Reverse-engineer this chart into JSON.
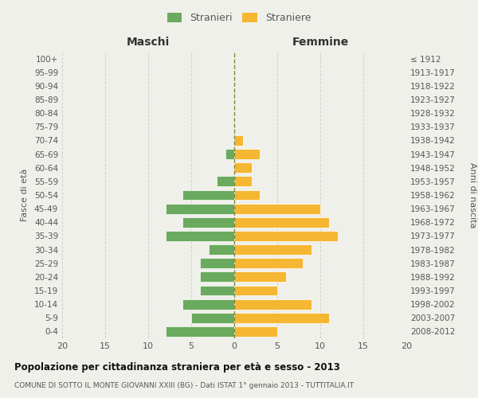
{
  "age_groups": [
    "0-4",
    "5-9",
    "10-14",
    "15-19",
    "20-24",
    "25-29",
    "30-34",
    "35-39",
    "40-44",
    "45-49",
    "50-54",
    "55-59",
    "60-64",
    "65-69",
    "70-74",
    "75-79",
    "80-84",
    "85-89",
    "90-94",
    "95-99",
    "100+"
  ],
  "birth_years": [
    "2008-2012",
    "2003-2007",
    "1998-2002",
    "1993-1997",
    "1988-1992",
    "1983-1987",
    "1978-1982",
    "1973-1977",
    "1968-1972",
    "1963-1967",
    "1958-1962",
    "1953-1957",
    "1948-1952",
    "1943-1947",
    "1938-1942",
    "1933-1937",
    "1928-1932",
    "1923-1927",
    "1918-1922",
    "1913-1917",
    "≤ 1912"
  ],
  "males": [
    8,
    5,
    6,
    4,
    4,
    4,
    3,
    8,
    6,
    8,
    6,
    2,
    0,
    1,
    0,
    0,
    0,
    0,
    0,
    0,
    0
  ],
  "females": [
    5,
    11,
    9,
    5,
    6,
    8,
    9,
    12,
    11,
    10,
    3,
    2,
    2,
    3,
    1,
    0,
    0,
    0,
    0,
    0,
    0
  ],
  "male_color": "#6aaa5e",
  "female_color": "#f5b731",
  "title": "Popolazione per cittadinanza straniera per età e sesso - 2013",
  "subtitle": "COMUNE DI SOTTO IL MONTE GIOVANNI XXIII (BG) - Dati ISTAT 1° gennaio 2013 - TUTTITALIA.IT",
  "legend_male": "Stranieri",
  "legend_female": "Straniere",
  "xlabel_left": "Maschi",
  "xlabel_right": "Femmine",
  "ylabel_left": "Fasce di età",
  "ylabel_right": "Anni di nascita",
  "xlim": 20,
  "background_color": "#f0f0eb",
  "grid_color": "#cccccc",
  "bar_edge_color": "white"
}
